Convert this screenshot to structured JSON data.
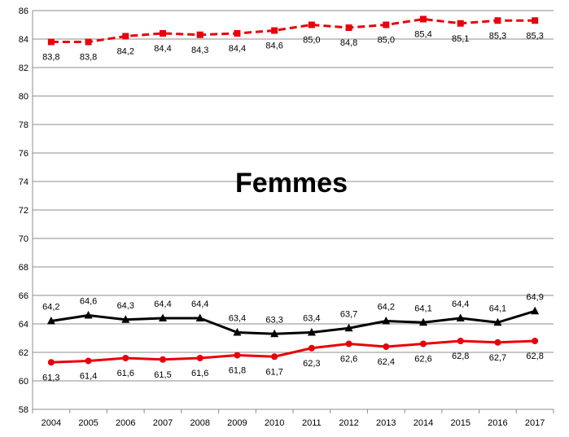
{
  "chart_data": {
    "type": "line",
    "title": "Femmes",
    "xlabel": "",
    "ylabel": "",
    "ylim": [
      58,
      86
    ],
    "ystep": 2,
    "grid": true,
    "legend": "none",
    "categories": [
      "2004",
      "2005",
      "2006",
      "2007",
      "2008",
      "2009",
      "2010",
      "2011",
      "2012",
      "2013",
      "2014",
      "2015",
      "2016",
      "2017"
    ],
    "series": [
      {
        "color": "#e8000b",
        "dashed": true,
        "marker": "square",
        "values": [
          83.8,
          83.8,
          84.2,
          84.4,
          84.3,
          84.4,
          84.6,
          85.0,
          84.8,
          85.0,
          85.4,
          85.1,
          85.3,
          85.3
        ],
        "labels": [
          "83,8",
          "83,8",
          "84,2",
          "84,4",
          "84,3",
          "84,4",
          "84,6",
          "85,0",
          "84,8",
          "85,0",
          "85,4",
          "85,1",
          "85,3",
          "85,3"
        ],
        "label_position": "below"
      },
      {
        "color": "#000000",
        "dashed": false,
        "marker": "triangle",
        "values": [
          64.2,
          64.6,
          64.3,
          64.4,
          64.4,
          63.4,
          63.3,
          63.4,
          63.7,
          64.2,
          64.1,
          64.4,
          64.1,
          64.9
        ],
        "labels": [
          "64,2",
          "64,6",
          "64,3",
          "64,4",
          "64,4",
          "63,4",
          "63,3",
          "63,4",
          "63,7",
          "64,2",
          "64,1",
          "64,4",
          "64,1",
          "64,9"
        ],
        "label_position": "above"
      },
      {
        "color": "#e8000b",
        "dashed": false,
        "marker": "circle",
        "values": [
          61.3,
          61.4,
          61.6,
          61.5,
          61.6,
          61.8,
          61.7,
          62.3,
          62.6,
          62.4,
          62.6,
          62.8,
          62.7,
          62.8
        ],
        "labels": [
          "61,3",
          "61,4",
          "61,6",
          "61,5",
          "61,6",
          "61,8",
          "61,7",
          "62,3",
          "62,6",
          "62,4",
          "62,6",
          "62,8",
          "62,7",
          "62,8"
        ],
        "label_position": "below"
      }
    ]
  }
}
